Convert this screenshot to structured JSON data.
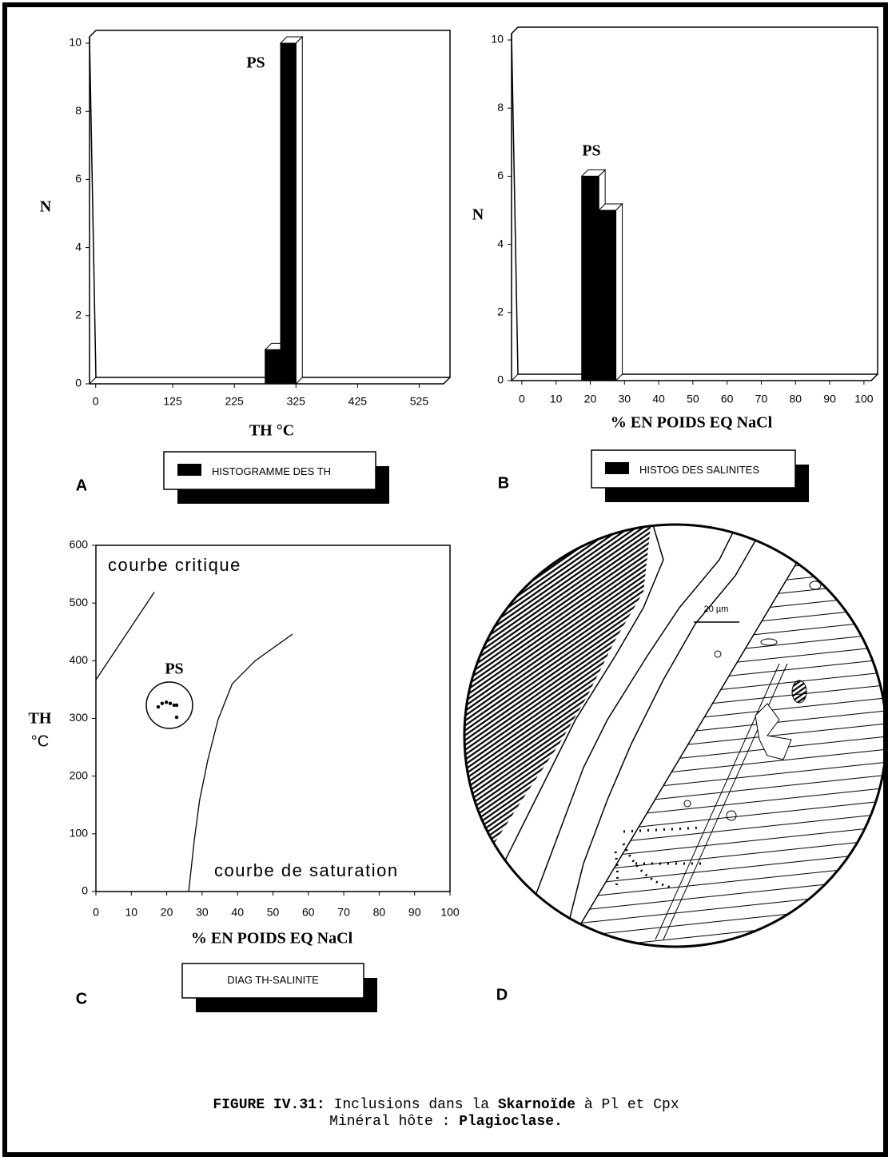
{
  "chart_data": [
    {
      "type": "histogram",
      "panel": "A",
      "xlabel": "TH °C",
      "ylabel": "N",
      "annotation": "PS",
      "bins": [
        275,
        300,
        325
      ],
      "series": [
        {
          "name": "HISTOGRAMME DES TH",
          "color": "#000000",
          "values": [
            1,
            10
          ]
        }
      ],
      "xlim": [
        -10,
        575
      ],
      "xticks": [
        0,
        125,
        225,
        325,
        425,
        525
      ],
      "ylim": [
        0,
        10
      ],
      "yticks": [
        0,
        2,
        4,
        6,
        8,
        10
      ]
    },
    {
      "type": "histogram",
      "panel": "B",
      "xlabel": "% EN POIDS EQ NaCl",
      "ylabel": "N",
      "annotation": "PS",
      "bins": [
        17.5,
        22.5,
        27.5
      ],
      "series": [
        {
          "name": "HISTOG DES SALINITES",
          "color": "#000000",
          "values": [
            6,
            5
          ]
        }
      ],
      "xlim": [
        -3,
        104
      ],
      "xticks": [
        0,
        10,
        20,
        30,
        40,
        50,
        60,
        70,
        80,
        90,
        100
      ],
      "ylim": [
        0,
        10
      ],
      "yticks": [
        0,
        2,
        4,
        6,
        8,
        10
      ]
    },
    {
      "type": "scatter",
      "panel": "C",
      "xlabel": "% EN POIDS EQ NaCl",
      "ylabel": [
        "TH",
        "°C"
      ],
      "annotation": "PS",
      "series": [
        {
          "name": "DIAG TH-SALINITE",
          "color": "#000000",
          "x": [
            17.6,
            18.7,
            19.9,
            21,
            22.1,
            22.8,
            22.8
          ],
          "values": [
            320,
            326,
            328,
            326,
            323,
            323,
            302
          ]
        }
      ],
      "lines": [
        {
          "name": "courbe critique",
          "x": [
            0,
            16.5
          ],
          "values": [
            367,
            519
          ]
        },
        {
          "name": "courbe de saturation",
          "x": [
            26.2,
            27.8,
            29.3,
            31.6,
            34.5,
            38.5,
            45,
            55.5
          ],
          "values": [
            0,
            90,
            159,
            228,
            298,
            360,
            400,
            446
          ]
        }
      ],
      "xlim": [
        0,
        100
      ],
      "xticks": [
        0,
        10,
        20,
        30,
        40,
        50,
        60,
        70,
        80,
        90,
        100
      ],
      "ylim": [
        0,
        600
      ],
      "yticks": [
        0,
        100,
        200,
        300,
        400,
        500,
        600
      ]
    }
  ],
  "drawing": {
    "panel": "D",
    "scale_label": "20 µm"
  },
  "caption": {
    "lines": [
      [
        {
          "text": "FIGURE IV.31:",
          "bold": true
        },
        {
          "text": "Inclusions dans la",
          "bold": false
        },
        {
          "text": "Skarnoïde",
          "bold": true
        },
        {
          "text": "à Pl et Cpx",
          "bold": false
        }
      ],
      [
        {
          "text": "Minéral hôte :",
          "bold": false
        },
        {
          "text": "Plagioclase.",
          "bold": true
        }
      ]
    ]
  }
}
